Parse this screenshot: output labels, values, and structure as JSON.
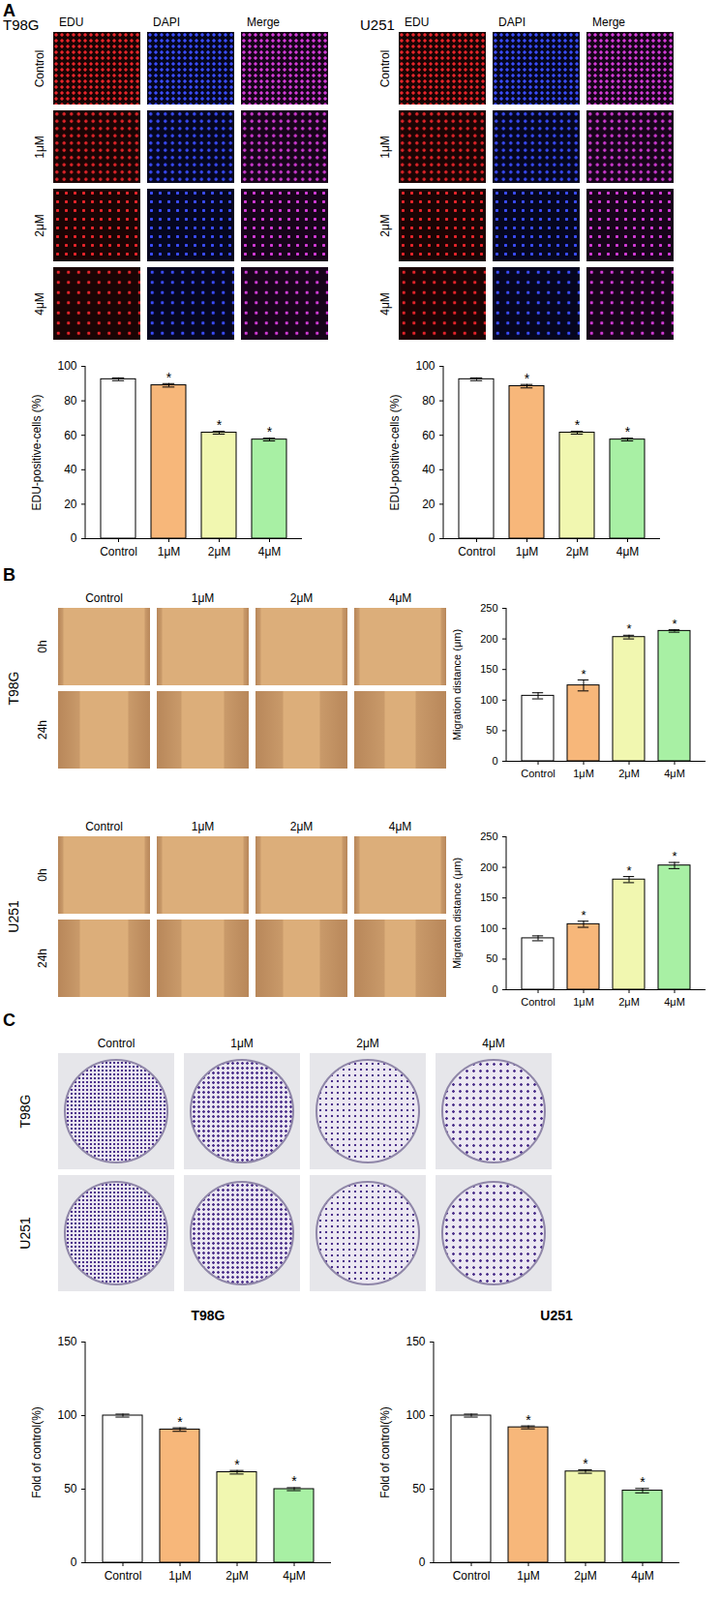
{
  "panels": [
    "A",
    "B",
    "C"
  ],
  "image_groups": [
    {
      "title": "T98G",
      "columns": [
        "EDU",
        "DAPI",
        "Merge"
      ],
      "rows": [
        "Control",
        "1μM",
        "2μM",
        "4μM"
      ]
    },
    {
      "title": "U251",
      "columns": [
        "EDU",
        "DAPI",
        "Merge"
      ],
      "rows": [
        "Control",
        "1μM",
        "2μM",
        "4μM"
      ]
    },
    {
      "title": "T98G",
      "columns": [
        "Control",
        "1μM",
        "2μM",
        "4μM"
      ],
      "rows": [
        "0h",
        "24h"
      ]
    },
    {
      "title": "U251",
      "columns": [
        "Control",
        "1μM",
        "2μM",
        "4μM"
      ],
      "rows": [
        "0h",
        "24h"
      ]
    },
    {
      "columns": [
        "Control",
        "1μM",
        "2μM",
        "4μM"
      ],
      "rows": [
        "T98G",
        "U251"
      ]
    }
  ],
  "chart_data": [
    {
      "type": "bar",
      "categories": [
        "Control",
        "1μM",
        "2μM",
        "4μM"
      ],
      "values": [
        92.5,
        89,
        61.5,
        57.5
      ],
      "errors": [
        0.8,
        1,
        0.8,
        0.8
      ],
      "significance": [
        null,
        "*",
        "*",
        "*"
      ],
      "colors": [
        "#ffffff",
        "#f7b77a",
        "#f1f7b0",
        "#a8f0a4"
      ],
      "ylabel": "EDU-positive-cells (%)",
      "ylim": [
        0,
        100
      ],
      "yticks": [
        0,
        20,
        40,
        60,
        80,
        100
      ]
    },
    {
      "type": "bar",
      "categories": [
        "Control",
        "1μM",
        "2μM",
        "4μM"
      ],
      "values": [
        92.5,
        88.5,
        61.5,
        57.5
      ],
      "errors": [
        0.8,
        1,
        0.8,
        0.8
      ],
      "significance": [
        null,
        "*",
        "*",
        "*"
      ],
      "colors": [
        "#ffffff",
        "#f7b77a",
        "#f1f7b0",
        "#a8f0a4"
      ],
      "ylabel": "EDU-positive-cells (%)",
      "ylim": [
        0,
        100
      ],
      "yticks": [
        0,
        20,
        40,
        60,
        80,
        100
      ]
    },
    {
      "type": "bar",
      "categories": [
        "Control",
        "1μM",
        "2μM",
        "4μM"
      ],
      "values": [
        107,
        124,
        203,
        213
      ],
      "errors": [
        5,
        9,
        3,
        2
      ],
      "significance": [
        null,
        "*",
        "*",
        "*"
      ],
      "colors": [
        "#ffffff",
        "#f7b77a",
        "#f1f7b0",
        "#a8f0a4"
      ],
      "ylabel": "Migration distance (μm)",
      "ylim": [
        0,
        250
      ],
      "yticks": [
        0,
        50,
        100,
        150,
        200,
        250
      ]
    },
    {
      "type": "bar",
      "categories": [
        "Control",
        "1μM",
        "2μM",
        "4μM"
      ],
      "values": [
        84,
        107,
        180,
        203
      ],
      "errors": [
        4,
        5,
        5,
        5
      ],
      "significance": [
        null,
        "*",
        "*",
        "*"
      ],
      "colors": [
        "#ffffff",
        "#f7b77a",
        "#f1f7b0",
        "#a8f0a4"
      ],
      "ylabel": "Migration distance (μm)",
      "ylim": [
        0,
        250
      ],
      "yticks": [
        0,
        50,
        100,
        150,
        200,
        250
      ]
    },
    {
      "type": "bar",
      "title": "T98G",
      "categories": [
        "Control",
        "1μM",
        "2μM",
        "4μM"
      ],
      "values": [
        100,
        90.5,
        61.5,
        50
      ],
      "errors": [
        1,
        1.2,
        1.2,
        1
      ],
      "significance": [
        null,
        "*",
        "*",
        "*"
      ],
      "colors": [
        "#ffffff",
        "#f7b77a",
        "#f1f7b0",
        "#a8f0a4"
      ],
      "ylabel": "Fold of control(%)",
      "ylim": [
        0,
        150
      ],
      "yticks": [
        0,
        50,
        100,
        150
      ]
    },
    {
      "type": "bar",
      "title": "U251",
      "categories": [
        "Control",
        "1μM",
        "2μM",
        "4μM"
      ],
      "values": [
        100,
        92,
        62,
        49
      ],
      "errors": [
        1,
        1,
        1.2,
        1.5
      ],
      "significance": [
        null,
        "*",
        "*",
        "*"
      ],
      "colors": [
        "#ffffff",
        "#f7b77a",
        "#f1f7b0",
        "#a8f0a4"
      ],
      "ylabel": "Fold of control(%)",
      "ylim": [
        0,
        150
      ],
      "yticks": [
        0,
        50,
        100,
        150
      ]
    }
  ]
}
